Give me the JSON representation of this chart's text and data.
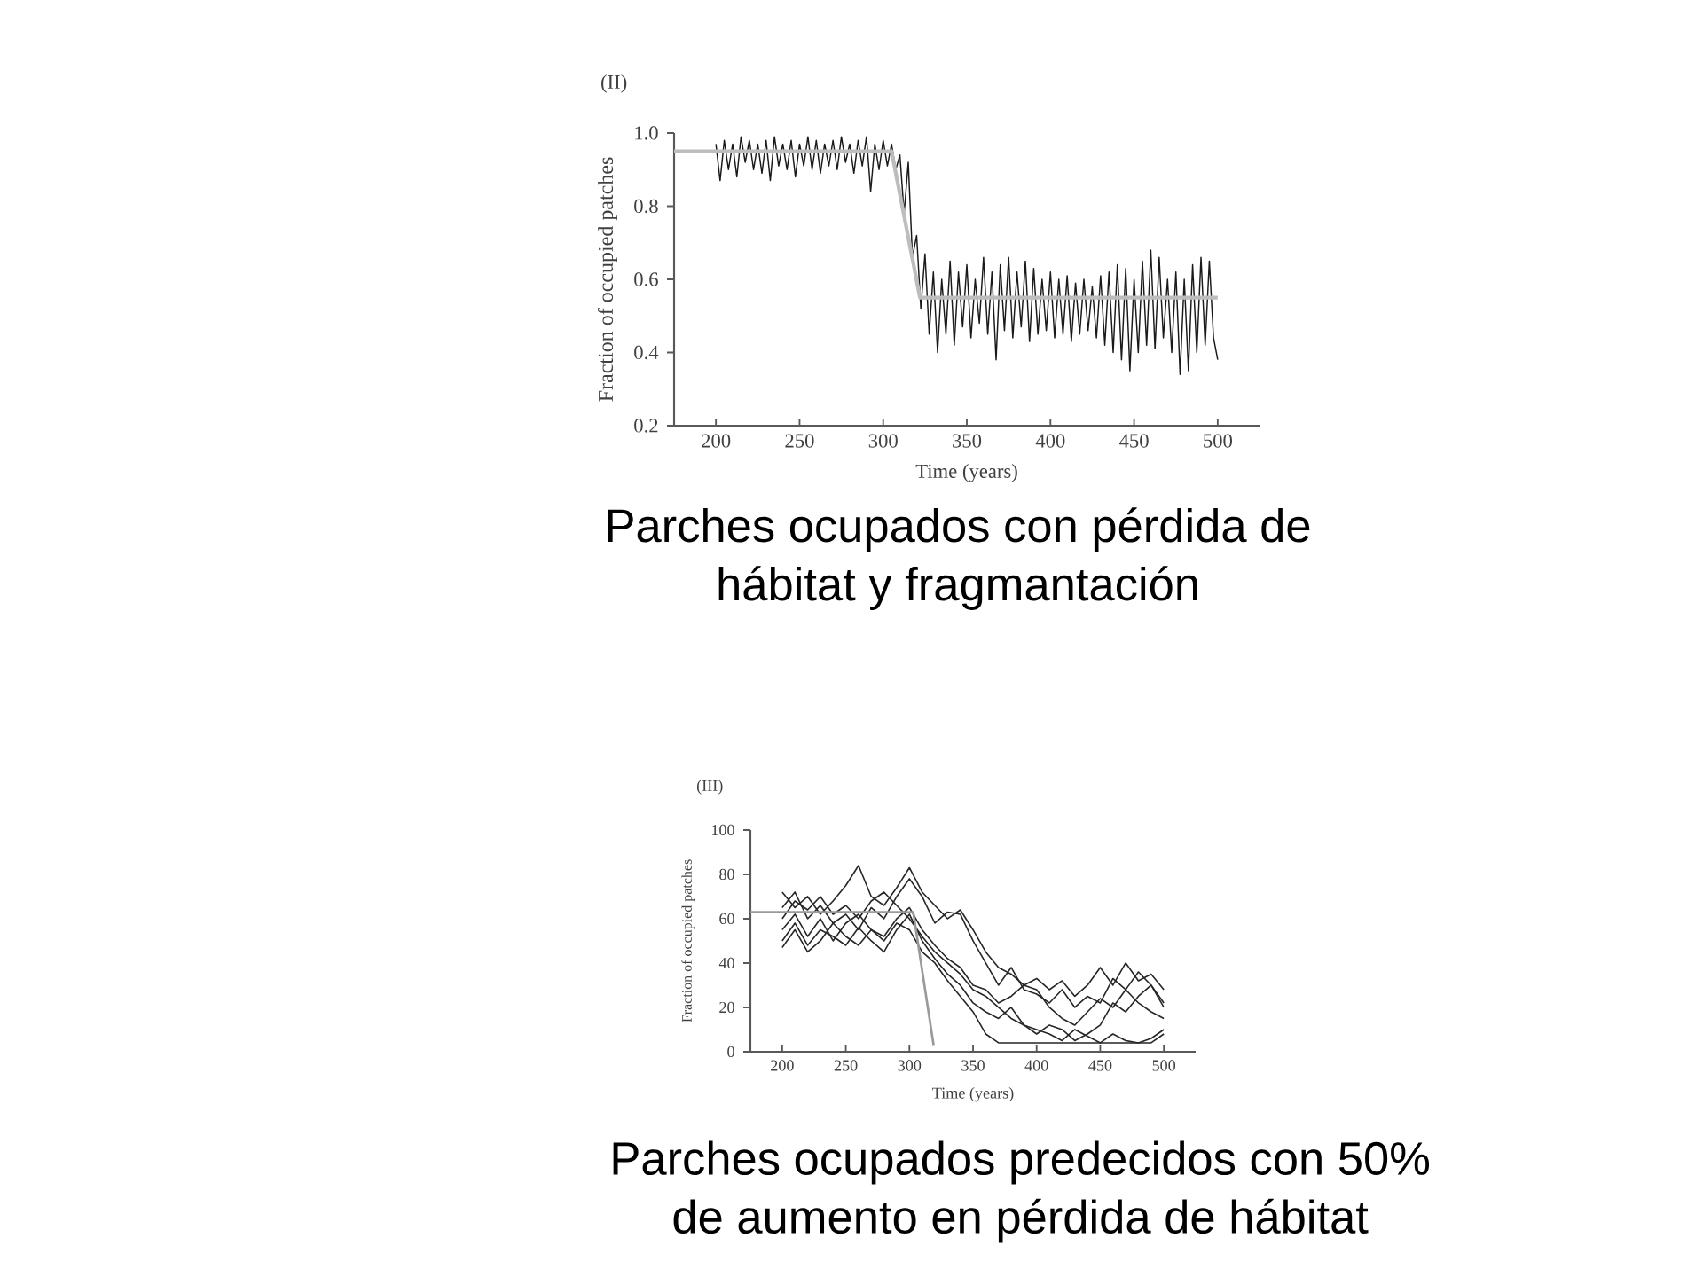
{
  "chart_data": [
    {
      "type": "line",
      "title": "(II)",
      "xlabel": "Time (years)",
      "ylabel": "Fraction of occupied patches",
      "x": [
        200,
        202.5,
        205,
        207.5,
        210,
        212.5,
        215,
        217.5,
        220,
        222.5,
        225,
        227.5,
        230,
        232.5,
        235,
        237.5,
        240,
        242.5,
        245,
        247.5,
        250,
        252.5,
        255,
        257.5,
        260,
        262.5,
        265,
        267.5,
        270,
        272.5,
        275,
        277.5,
        280,
        282.5,
        285,
        287.5,
        290,
        292.5,
        295,
        297.5,
        300,
        302.5,
        305,
        307.5,
        310,
        312.5,
        315,
        317.5,
        320,
        322.5,
        325,
        327.5,
        330,
        332.5,
        335,
        337.5,
        340,
        342.5,
        345,
        347.5,
        350,
        352.5,
        355,
        357.5,
        360,
        362.5,
        365,
        367.5,
        370,
        372.5,
        375,
        377.5,
        380,
        382.5,
        385,
        387.5,
        390,
        392.5,
        395,
        397.5,
        400,
        402.5,
        405,
        407.5,
        410,
        412.5,
        415,
        417.5,
        420,
        422.5,
        425,
        427.5,
        430,
        432.5,
        435,
        437.5,
        440,
        442.5,
        445,
        447.5,
        450,
        452.5,
        455,
        457.5,
        460,
        462.5,
        465,
        467.5,
        470,
        472.5,
        475,
        477.5,
        480,
        482.5,
        485,
        487.5,
        490,
        492.5,
        495,
        497.5,
        500
      ],
      "series": [
        {
          "color": "#1a1a1a",
          "values": [
            0.97,
            0.87,
            0.98,
            0.9,
            0.97,
            0.88,
            0.99,
            0.92,
            0.98,
            0.9,
            0.97,
            0.89,
            0.98,
            0.87,
            0.99,
            0.91,
            0.97,
            0.9,
            0.98,
            0.88,
            0.97,
            0.91,
            0.99,
            0.9,
            0.98,
            0.89,
            0.97,
            0.91,
            0.98,
            0.9,
            0.99,
            0.92,
            0.97,
            0.89,
            0.98,
            0.91,
            0.99,
            0.84,
            0.97,
            0.9,
            0.98,
            0.91,
            0.97,
            0.9,
            0.94,
            0.78,
            0.92,
            0.66,
            0.72,
            0.52,
            0.67,
            0.45,
            0.62,
            0.4,
            0.6,
            0.45,
            0.65,
            0.42,
            0.62,
            0.47,
            0.64,
            0.44,
            0.6,
            0.48,
            0.66,
            0.45,
            0.62,
            0.38,
            0.64,
            0.46,
            0.66,
            0.44,
            0.62,
            0.47,
            0.65,
            0.43,
            0.63,
            0.45,
            0.6,
            0.46,
            0.62,
            0.44,
            0.6,
            0.45,
            0.61,
            0.43,
            0.59,
            0.45,
            0.6,
            0.46,
            0.58,
            0.44,
            0.61,
            0.42,
            0.62,
            0.4,
            0.64,
            0.38,
            0.63,
            0.35,
            0.6,
            0.4,
            0.65,
            0.42,
            0.68,
            0.41,
            0.66,
            0.44,
            0.6,
            0.4,
            0.62,
            0.34,
            0.6,
            0.35,
            0.64,
            0.4,
            0.66,
            0.42,
            0.65,
            0.44,
            0.38
          ]
        },
        {
          "color": "#bdbdbd",
          "x": [
            175,
            305,
            322,
            500
          ],
          "values": [
            0.95,
            0.95,
            0.55,
            0.55
          ]
        }
      ],
      "xlim": [
        175,
        525
      ],
      "ylim": [
        0.2,
        1.0
      ],
      "xticks": [
        200,
        250,
        300,
        350,
        400,
        450,
        500
      ],
      "yticks": [
        {
          "value": 0.2,
          "label": "0.2"
        },
        {
          "value": 0.4,
          "label": "0.4"
        },
        {
          "value": 0.6,
          "label": "0.6"
        },
        {
          "value": 0.8,
          "label": "0.8"
        },
        {
          "value": 1.0,
          "label": "1.0"
        }
      ],
      "annotations": [
        "Parches ocupados con pérdida de hábitat y fragmantación"
      ]
    },
    {
      "type": "line",
      "title": "(III)",
      "xlabel": "Time (years)",
      "ylabel": "Fraction of occupied patches",
      "x": [
        200,
        210,
        220,
        230,
        240,
        250,
        260,
        270,
        280,
        290,
        300,
        310,
        320,
        330,
        340,
        350,
        360,
        370,
        380,
        390,
        400,
        410,
        420,
        430,
        440,
        450,
        460,
        470,
        480,
        490,
        500
      ],
      "series": [
        {
          "color": "#262626",
          "values": [
            72,
            65,
            70,
            62,
            68,
            75,
            84,
            70,
            66,
            74,
            83,
            72,
            66,
            60,
            64,
            55,
            45,
            38,
            35,
            30,
            33,
            28,
            32,
            25,
            30,
            38,
            30,
            40,
            32,
            35,
            28
          ]
        },
        {
          "color": "#262626",
          "values": [
            65,
            72,
            60,
            66,
            58,
            62,
            55,
            65,
            60,
            70,
            78,
            70,
            58,
            63,
            62,
            50,
            40,
            30,
            38,
            28,
            26,
            22,
            28,
            20,
            25,
            22,
            33,
            28,
            36,
            30,
            20
          ]
        },
        {
          "color": "#262626",
          "values": [
            55,
            62,
            52,
            60,
            50,
            58,
            62,
            55,
            52,
            60,
            65,
            55,
            48,
            42,
            38,
            30,
            28,
            22,
            25,
            30,
            28,
            20,
            15,
            12,
            18,
            24,
            20,
            28,
            22,
            18,
            15
          ]
        },
        {
          "color": "#262626",
          "values": [
            50,
            58,
            48,
            55,
            52,
            48,
            56,
            50,
            45,
            55,
            62,
            50,
            42,
            35,
            30,
            22,
            18,
            15,
            20,
            12,
            10,
            8,
            5,
            10,
            7,
            4,
            8,
            5,
            4,
            6,
            10
          ]
        },
        {
          "color": "#262626",
          "values": [
            47,
            55,
            45,
            50,
            58,
            52,
            48,
            55,
            50,
            58,
            55,
            45,
            40,
            32,
            25,
            18,
            8,
            4,
            4,
            4,
            4,
            4,
            4,
            4,
            4,
            4,
            4,
            4,
            4,
            4,
            8
          ]
        },
        {
          "color": "#262626",
          "values": [
            60,
            68,
            64,
            70,
            62,
            66,
            60,
            68,
            72,
            66,
            60,
            52,
            45,
            40,
            35,
            28,
            25,
            20,
            15,
            12,
            8,
            12,
            10,
            5,
            8,
            12,
            22,
            18,
            25,
            30,
            22
          ]
        },
        {
          "color": "#9a9a9a",
          "x": [
            175,
            303,
            319
          ],
          "values": [
            63,
            63,
            3
          ]
        }
      ],
      "xlim": [
        175,
        525
      ],
      "ylim": [
        0,
        100
      ],
      "xticks": [
        200,
        250,
        300,
        350,
        400,
        450,
        500
      ],
      "yticks": [
        0,
        20,
        40,
        60,
        80,
        100
      ],
      "annotations": [
        "Parches ocupados predecidos con 50% de aumento en pérdida de hábitat"
      ]
    }
  ]
}
